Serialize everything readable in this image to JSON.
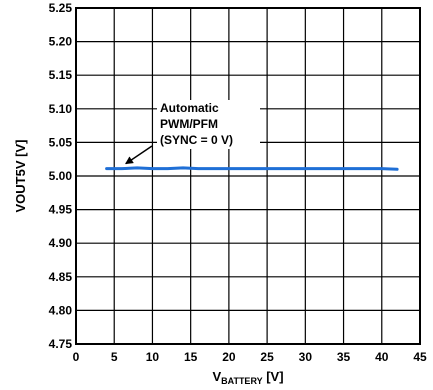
{
  "chart_data": {
    "type": "line",
    "xlabel": {
      "main": "V",
      "sub": "BATTERY",
      "unit": " [V]"
    },
    "ylabel": "VOUT5V [V]",
    "xlim": [
      0,
      45
    ],
    "ylim": [
      4.75,
      5.25
    ],
    "xticks": [
      "0",
      "5",
      "10",
      "15",
      "20",
      "25",
      "30",
      "35",
      "40",
      "45"
    ],
    "yticks": [
      "4.75",
      "4.80",
      "4.85",
      "4.90",
      "4.95",
      "5.00",
      "5.05",
      "5.10",
      "5.15",
      "5.20",
      "5.25"
    ],
    "grid": true,
    "series": [
      {
        "x": [
          4,
          6,
          8,
          10,
          12,
          14,
          16,
          18,
          20,
          22,
          24,
          26,
          28,
          30,
          32,
          34,
          36,
          38,
          40,
          42
        ],
        "values": [
          5.011,
          5.011,
          5.012,
          5.011,
          5.011,
          5.012,
          5.011,
          5.011,
          5.011,
          5.011,
          5.011,
          5.011,
          5.011,
          5.011,
          5.011,
          5.011,
          5.011,
          5.011,
          5.011,
          5.01
        ],
        "color": "#1f6fd6"
      }
    ],
    "annotation": {
      "lines": [
        "Automatic",
        "PWM/PFM",
        "(SYNC = 0 V)"
      ],
      "arrow_target": {
        "x": 6,
        "y": 5.011
      }
    },
    "colors": {
      "series": "#1f6fd6",
      "axis": "#000000",
      "grid": "#000000"
    }
  }
}
